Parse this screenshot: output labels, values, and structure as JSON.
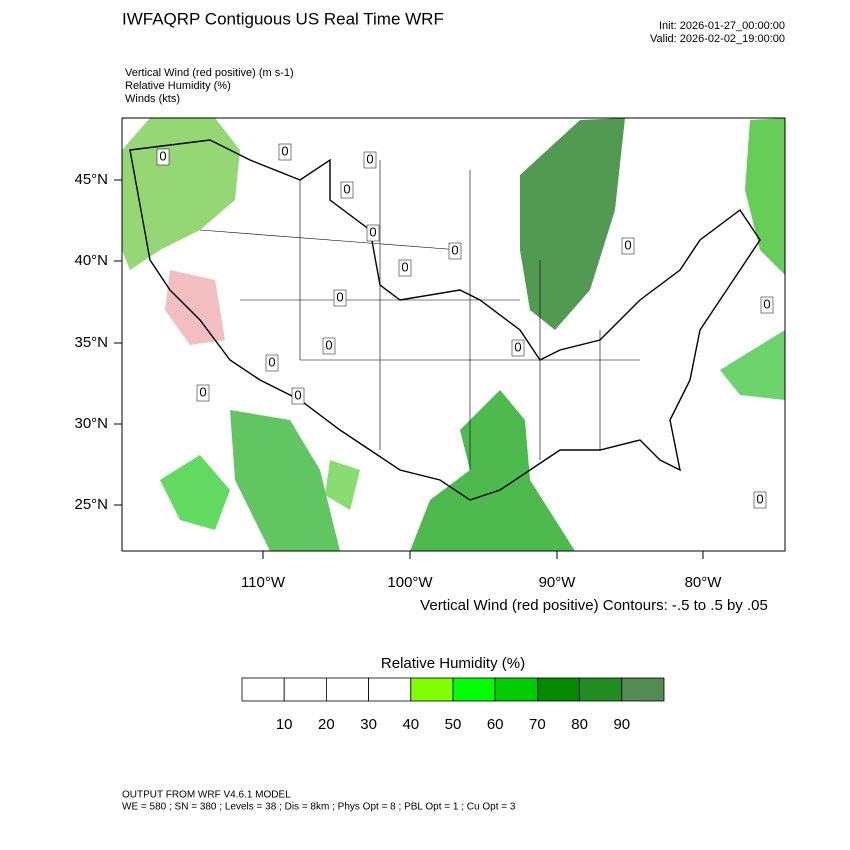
{
  "header": {
    "title": "IWFAQRP Contiguous US Real Time WRF",
    "init": "Init: 2026-01-27_00:00:00",
    "valid": "Valid: 2026-02-02_19:00:00"
  },
  "fields": [
    "Vertical Wind (red positive)   (m s-1)",
    "Relative Humidity   (%)",
    "Winds   (kts)"
  ],
  "map": {
    "lat_labels": [
      "45°N",
      "40°N",
      "35°N",
      "30°N",
      "25°N"
    ],
    "lon_labels": [
      "110°W",
      "100°W",
      "90°W",
      "80°W"
    ],
    "contour_labels": [
      "0",
      "0",
      "0",
      "0",
      "0",
      "0",
      "0",
      "0",
      "0",
      "0",
      "0",
      "0",
      "0",
      "0",
      "0",
      "0"
    ],
    "contour_note": "Vertical Wind (red positive) Contours: -.5 to .5 by .05"
  },
  "colorbar": {
    "title": "Relative Humidity  (%)",
    "ticks": [
      10,
      20,
      30,
      40,
      50,
      60,
      70,
      80,
      90
    ],
    "colors": [
      "#ffffff",
      "#ffffff",
      "#ffffff",
      "#ffffff",
      "#80ff00",
      "#00ff00",
      "#00cd00",
      "#008b00",
      "#228b22",
      "#548b54"
    ]
  },
  "footer": [
    "OUTPUT FROM WRF V4.6.1 MODEL",
    "WE = 580 ; SN = 380 ; Levels = 38 ; Dis = 8km ; Phys Opt = 8 ; PBL Opt = 1 ; Cu Opt = 3"
  ]
}
